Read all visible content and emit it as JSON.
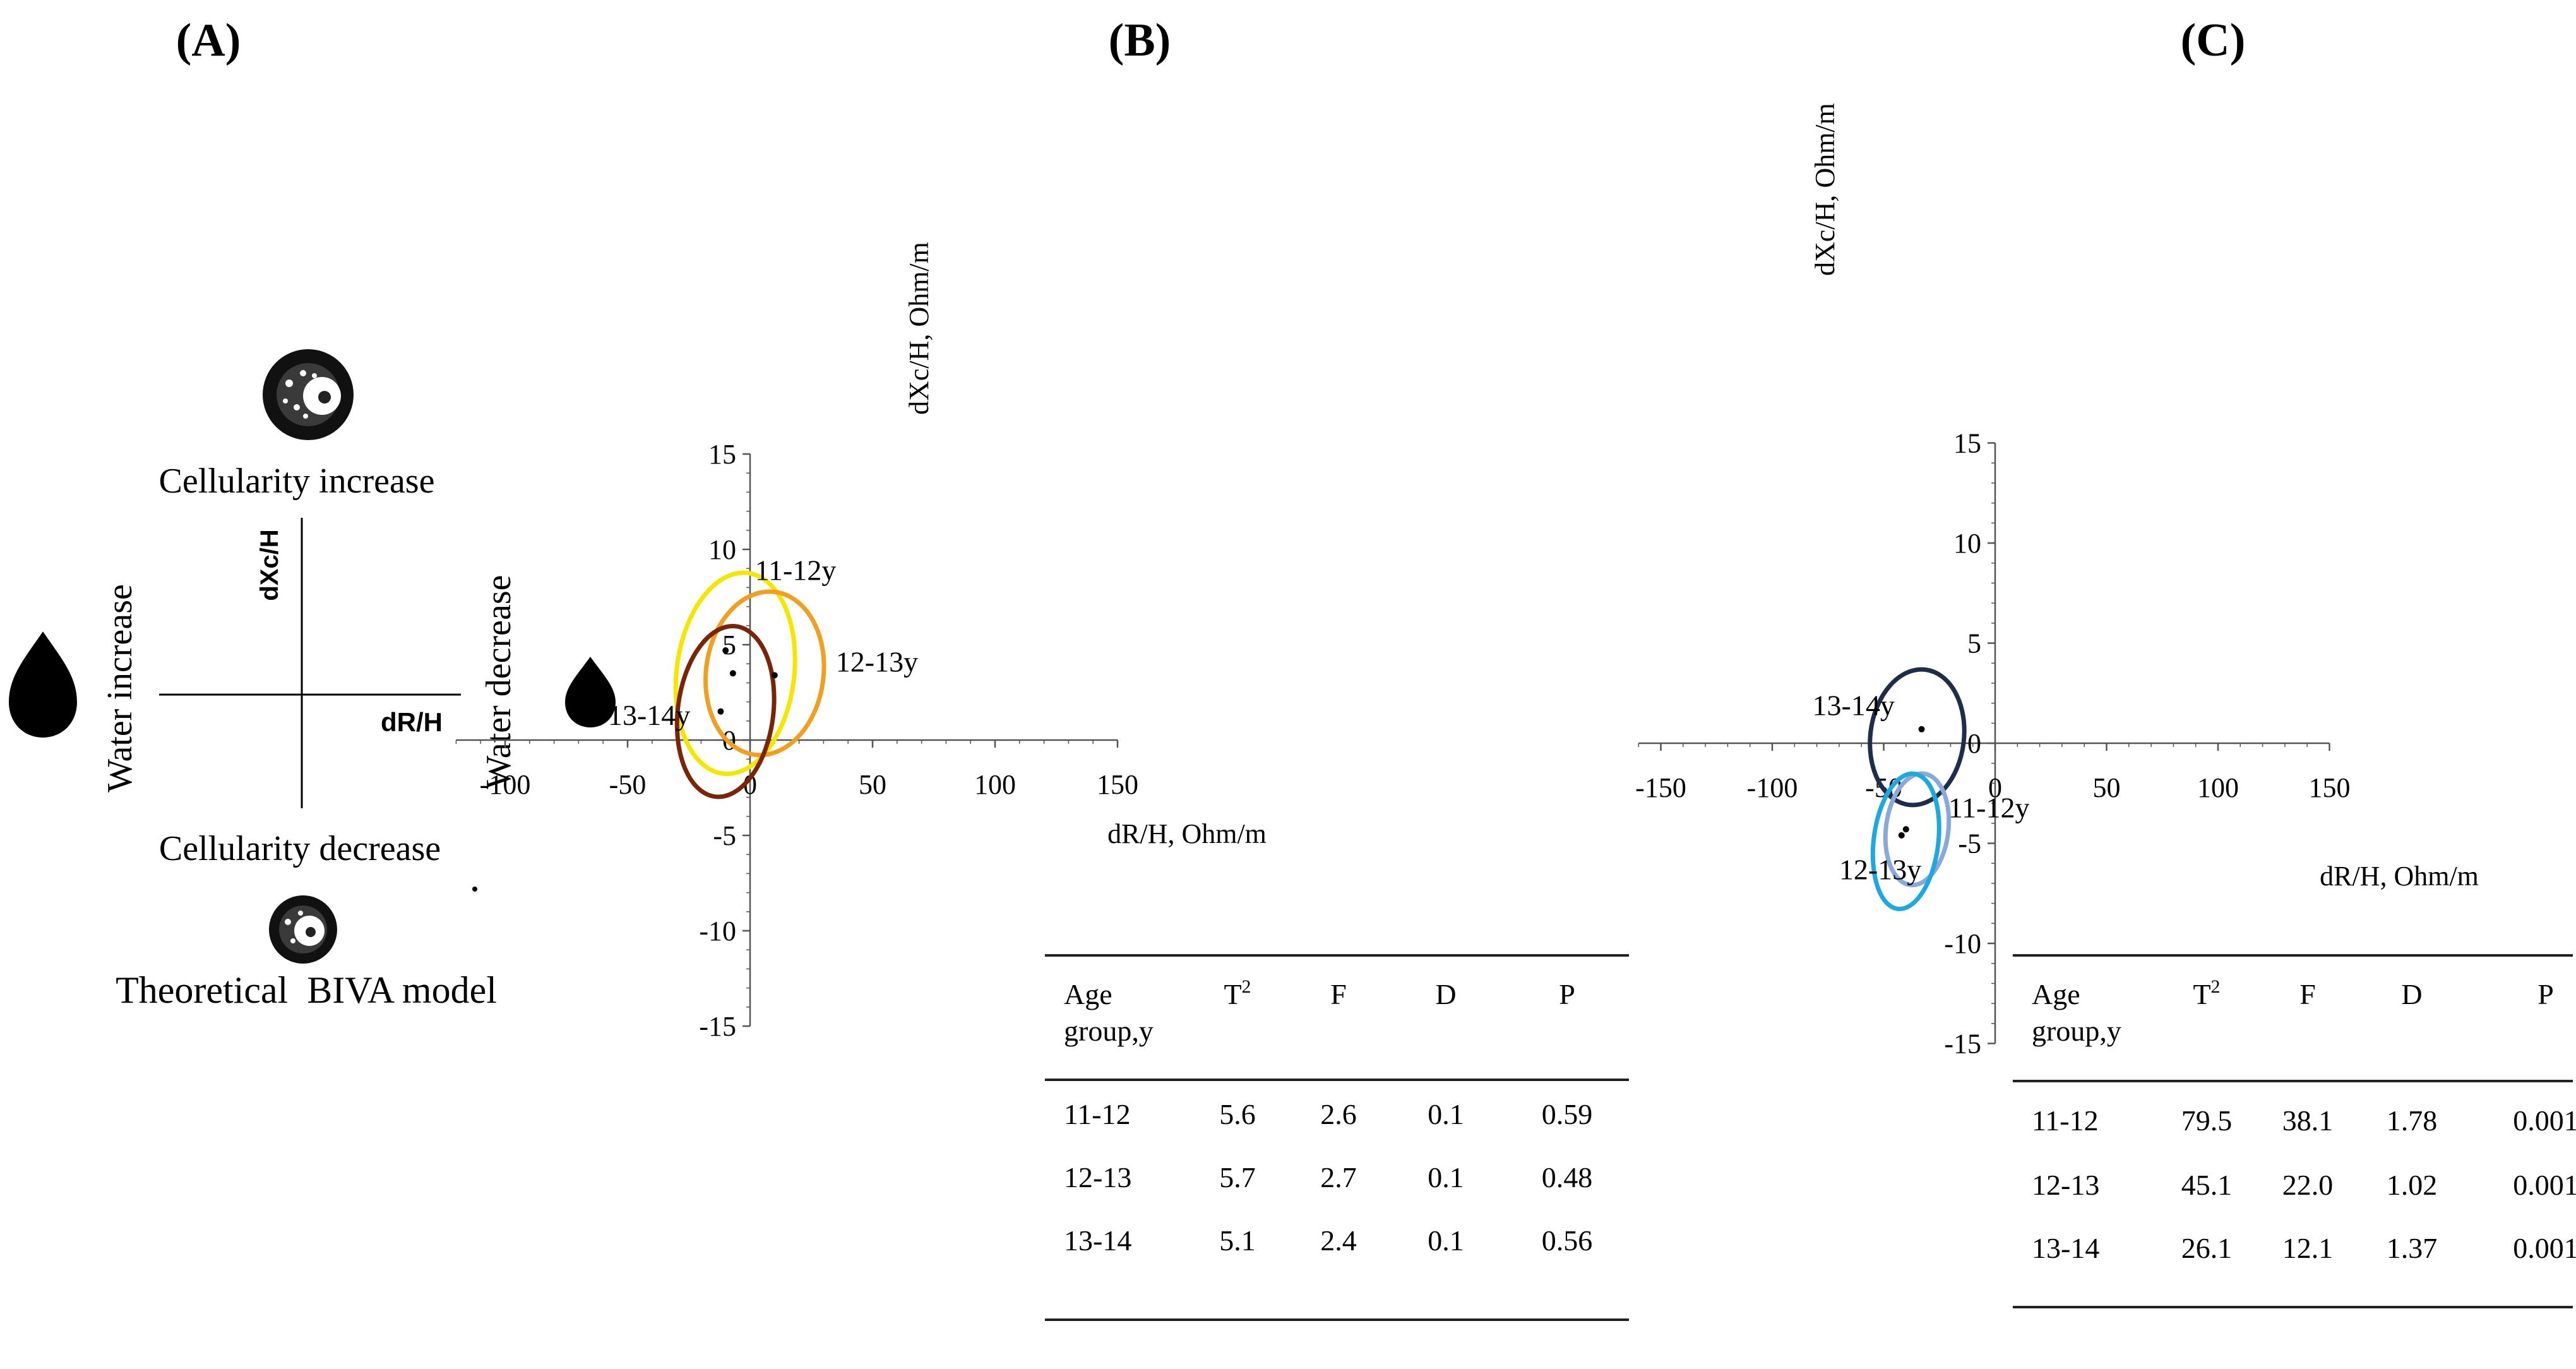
{
  "panels": {
    "a": {
      "panel_label": "(A)",
      "top_label": "Cellularity increase",
      "bottom_label": "Cellularity decrease",
      "left_label": "Water increase",
      "right_label": "Water decrease",
      "x_axis_label": "dR/H",
      "y_axis_label": "dXc/H",
      "caption": "Theoretical  BIVA model",
      "icons": [
        "cell-increase-icon",
        "cell-decrease-icon",
        "water-drop-large-icon",
        "water-drop-small-icon"
      ]
    },
    "b": {
      "panel_label": "(B)"
    },
    "c": {
      "panel_label": "(C)"
    }
  },
  "chart_data": [
    {
      "id": "B",
      "type": "scatter",
      "title": "",
      "xlabel": "dR/H, Ohm/m",
      "ylabel": "dXc/H, Ohm/m",
      "xlim": [
        -120,
        150
      ],
      "ylim": [
        -15,
        15
      ],
      "x_ticks": [
        -100,
        -50,
        0,
        50,
        100,
        150
      ],
      "x_tick_labels": [
        "-100",
        "-50",
        "0",
        "50",
        "100",
        "150"
      ],
      "y_ticks": [
        -15,
        -10,
        -5,
        0,
        5,
        10,
        15
      ],
      "y_tick_labels": [
        "-15",
        "-10",
        "-5",
        "0",
        "5",
        "10",
        "15"
      ],
      "series": [
        {
          "name": "11-12y",
          "color": "#f5e600",
          "center": [
            -6,
            3.5
          ],
          "semi_axes": [
            24,
            5.3
          ],
          "angle_deg": 97
        },
        {
          "name": "12-13y",
          "color": "#f0a020",
          "center": [
            6,
            3.5
          ],
          "semi_axes": [
            24,
            4.3
          ],
          "angle_deg": 97
        },
        {
          "name": "13-14y",
          "color": "#7b2508",
          "center": [
            -10,
            1.5
          ],
          "semi_axes": [
            19.5,
            4.5
          ],
          "angle_deg": 97
        }
      ],
      "points": [
        [
          -7,
          3.5
        ],
        [
          10,
          3.4
        ],
        [
          -12,
          1.5
        ],
        [
          -10,
          4.7
        ]
      ],
      "annotations": [
        {
          "text": "11-12y",
          "x": 2,
          "y": 8.4
        },
        {
          "text": "12-13y",
          "x": 35,
          "y": 3.6
        },
        {
          "text": "13-14y",
          "x": -58,
          "y": 0.8
        }
      ],
      "table": {
        "headers": [
          "Age group,y",
          "T²",
          "F",
          "D",
          "P"
        ],
        "header_line1": [
          "Age",
          "T",
          "F",
          "D",
          "P"
        ],
        "header_line2": "group,y",
        "t_superscript": "2",
        "rows": [
          [
            "11-12",
            "5.6",
            "2.6",
            "0.1",
            "0.59"
          ],
          [
            "12-13",
            "5.7",
            "2.7",
            "0.1",
            "0.48"
          ],
          [
            "13-14",
            "5.1",
            "2.4",
            "0.1",
            "0.56"
          ]
        ]
      }
    },
    {
      "id": "C",
      "type": "scatter",
      "title": "",
      "xlabel": "dR/H, Ohm/m",
      "ylabel": "dXc/H, Ohm/m",
      "xlim": [
        -160,
        150
      ],
      "ylim": [
        -15,
        15
      ],
      "x_ticks": [
        -150,
        -100,
        -50,
        0,
        50,
        100,
        150
      ],
      "x_tick_labels": [
        "-150",
        "-100",
        "-50",
        "0",
        "50",
        "100",
        "150"
      ],
      "y_ticks": [
        -15,
        -10,
        -5,
        0,
        5,
        10,
        15
      ],
      "y_tick_labels": [
        "-15",
        "-10",
        "-5",
        "0",
        "5",
        "10",
        "15"
      ],
      "series": [
        {
          "name": "13-14y",
          "color": "#1e2e4a",
          "center": [
            -35,
            0.3
          ],
          "semi_axes": [
            21,
            3.4
          ],
          "angle_deg": 97
        },
        {
          "name": "11-12y",
          "color": "#8aa8d8",
          "center": [
            -35,
            -4.3
          ],
          "semi_axes": [
            14,
            2.8
          ],
          "angle_deg": 97
        },
        {
          "name": "12-13y",
          "color": "#1ea8e0",
          "center": [
            -40,
            -4.9
          ],
          "semi_axes": [
            14.5,
            3.4
          ],
          "angle_deg": 97
        }
      ],
      "points": [
        [
          -33,
          0.7
        ],
        [
          -40,
          -4.3
        ],
        [
          -42,
          -4.6
        ]
      ],
      "annotations": [
        {
          "text": "13-14y",
          "x": -82,
          "y": 1.4
        },
        {
          "text": "11-12y",
          "x": -21,
          "y": -3.7
        },
        {
          "text": "12-13y",
          "x": -70,
          "y": -6.8
        }
      ],
      "table": {
        "headers": [
          "Age group,y",
          "T²",
          "F",
          "D",
          "P"
        ],
        "header_line1": [
          "Age",
          "T",
          "F",
          "D",
          "P"
        ],
        "header_line2": "group,y",
        "t_superscript": "2",
        "rows": [
          [
            "11-12",
            "79.5",
            "38.1",
            "1.78",
            "0.001"
          ],
          [
            "12-13",
            "45.1",
            "22.0",
            "1.02",
            "0.001"
          ],
          [
            "13-14",
            "26.1",
            "12.1",
            "1.37",
            "0.001"
          ]
        ]
      }
    }
  ]
}
